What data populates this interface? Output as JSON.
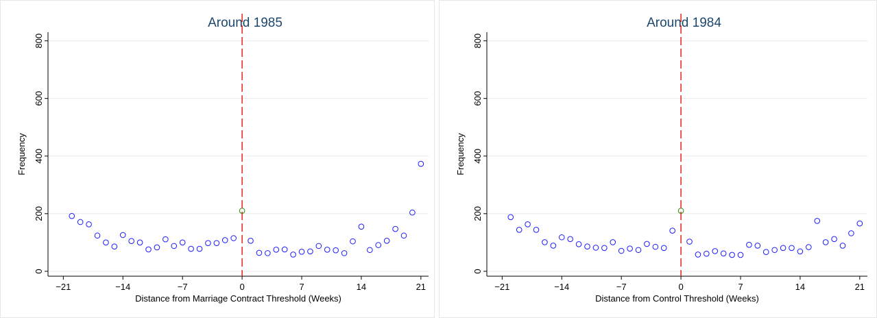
{
  "chart_data": [
    {
      "type": "scatter",
      "title": "Around 1985",
      "x_label": "Distance from Marriage Contract Threshold (Weeks)",
      "y_label": "Frequency",
      "xlim": [
        -22.8,
        21.9
      ],
      "ylim": [
        -17,
        830
      ],
      "xticks": [
        {
          "value": -21,
          "label": "−21"
        },
        {
          "value": -14,
          "label": "−14"
        },
        {
          "value": -7,
          "label": "−7"
        },
        0,
        7,
        14,
        21
      ],
      "yticks": [
        0,
        200,
        400,
        600,
        800
      ],
      "grid": true,
      "vline": {
        "x": 0,
        "color": "#e8201e"
      },
      "series": [
        {
          "color": "#1a1aff",
          "x": [
            -20,
            -19,
            -18,
            -17,
            -16,
            -15,
            -14,
            -13,
            -12,
            -11,
            -10,
            -9,
            -8,
            -7,
            -6,
            -5,
            -4,
            -3,
            -2,
            -1,
            1,
            2,
            3,
            4,
            5,
            6,
            7,
            8,
            9,
            10,
            11,
            12,
            13,
            14,
            15,
            16,
            17,
            18,
            19,
            20,
            21
          ],
          "values": [
            192,
            171,
            163,
            124,
            100,
            86,
            126,
            105,
            100,
            76,
            83,
            111,
            88,
            100,
            78,
            78,
            98,
            98,
            108,
            115,
            106,
            64,
            63,
            75,
            76,
            58,
            68,
            69,
            88,
            75,
            73,
            63,
            104,
            155,
            74,
            91,
            106,
            147,
            124,
            204,
            373
          ]
        },
        {
          "color": "#2e8b00",
          "x": [
            0
          ],
          "values": [
            210
          ]
        }
      ]
    },
    {
      "type": "scatter",
      "title": "Around 1984",
      "x_label": "Distance from Control Threshold (Weeks)",
      "y_label": "Frequency",
      "xlim": [
        -22.8,
        21.9
      ],
      "ylim": [
        -17,
        830
      ],
      "xticks": [
        {
          "value": -21,
          "label": "−21"
        },
        {
          "value": -14,
          "label": "−14"
        },
        {
          "value": -7,
          "label": "−7"
        },
        0,
        7,
        14,
        21
      ],
      "yticks": [
        0,
        200,
        400,
        600,
        800
      ],
      "grid": true,
      "vline": {
        "x": 0,
        "color": "#e8201e"
      },
      "series": [
        {
          "color": "#1a1aff",
          "x": [
            -20,
            -19,
            -18,
            -17,
            -16,
            -15,
            -14,
            -13,
            -12,
            -11,
            -10,
            -9,
            -8,
            -7,
            -6,
            -5,
            -4,
            -3,
            -2,
            -1,
            1,
            2,
            3,
            4,
            5,
            6,
            7,
            8,
            9,
            10,
            11,
            12,
            13,
            14,
            15,
            16,
            17,
            18,
            19,
            20,
            21
          ],
          "values": [
            188,
            144,
            163,
            144,
            101,
            89,
            118,
            112,
            94,
            86,
            82,
            81,
            101,
            71,
            79,
            74,
            95,
            85,
            81,
            141,
            103,
            58,
            61,
            70,
            62,
            57,
            57,
            92,
            89,
            67,
            74,
            81,
            81,
            69,
            84,
            175,
            101,
            112,
            89,
            132,
            166
          ]
        },
        {
          "color": "#2e8b00",
          "x": [
            0
          ],
          "values": [
            210
          ]
        }
      ]
    }
  ]
}
